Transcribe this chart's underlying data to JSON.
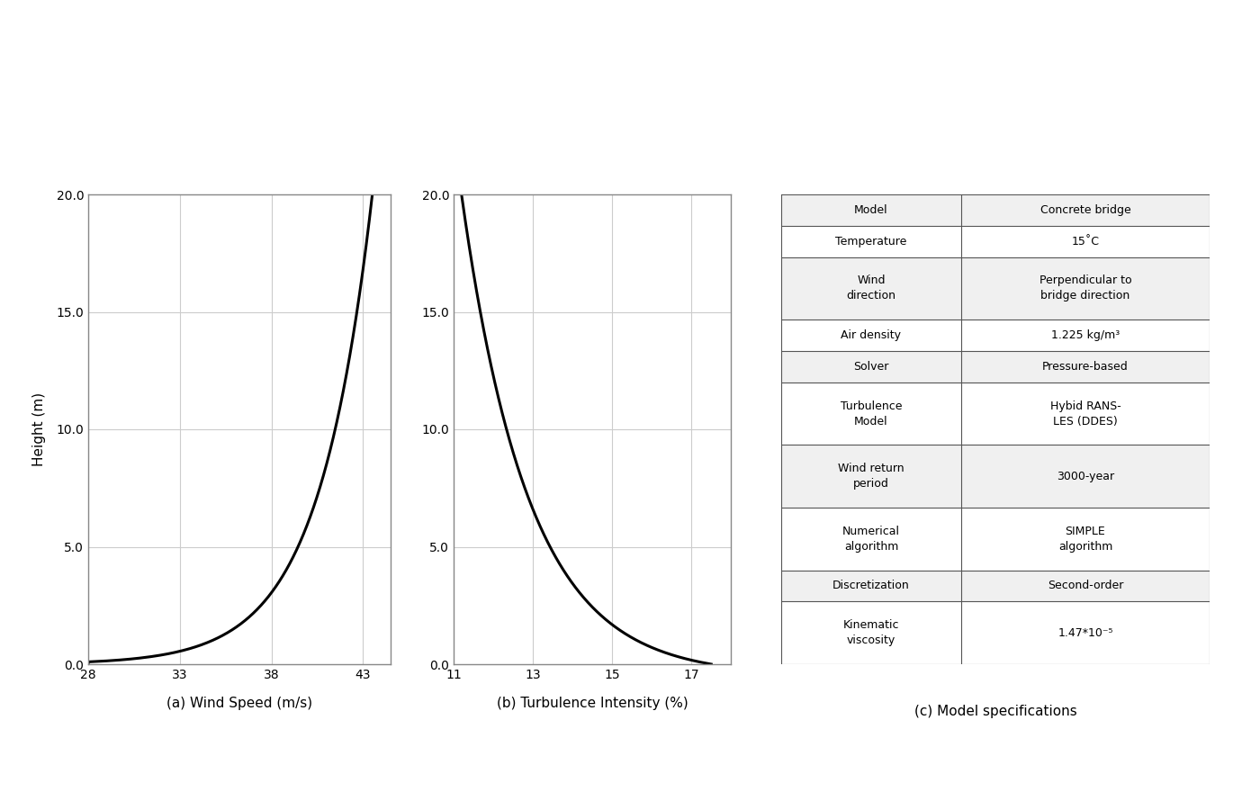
{
  "wind_speed": {
    "xlabel": "(a) Wind Speed (m/s)",
    "ylabel": "Height (m)",
    "xlim": [
      28,
      44.5
    ],
    "ylim": [
      0,
      20
    ],
    "xticks": [
      28,
      33,
      38,
      43
    ],
    "yticks": [
      0.0,
      5.0,
      10.0,
      15.0,
      20.0
    ]
  },
  "turbulence": {
    "xlabel": "(b) Turbulence Intensity (%)",
    "xlim": [
      11,
      18
    ],
    "ylim": [
      0,
      20
    ],
    "xticks": [
      11,
      13,
      15,
      17
    ],
    "yticks": [
      0.0,
      5.0,
      10.0,
      15.0,
      20.0
    ]
  },
  "table": {
    "title": "(c) Model specifications",
    "rows": [
      [
        "Model",
        "Concrete bridge"
      ],
      [
        "Temperature",
        "15˚C"
      ],
      [
        "Wind\ndirection",
        "Perpendicular to\nbridge direction"
      ],
      [
        "Air density",
        "1.225 kg/m³"
      ],
      [
        "Solver",
        "Pressure-based"
      ],
      [
        "Turbulence\nModel",
        "Hybid RANS-\nLES (DDES)"
      ],
      [
        "Wind return\nperiod",
        "3000-year"
      ],
      [
        "Numerical\nalgorithm",
        "SIMPLE\nalgorithm"
      ],
      [
        "Discretization",
        "Second-order"
      ],
      [
        "Kinematic\nviscosity",
        "1.47*10⁻⁵"
      ]
    ],
    "col_split": 0.42,
    "border_color": "#555555"
  },
  "background_color": "#ffffff",
  "line_color": "#000000",
  "grid_color": "#cccccc"
}
